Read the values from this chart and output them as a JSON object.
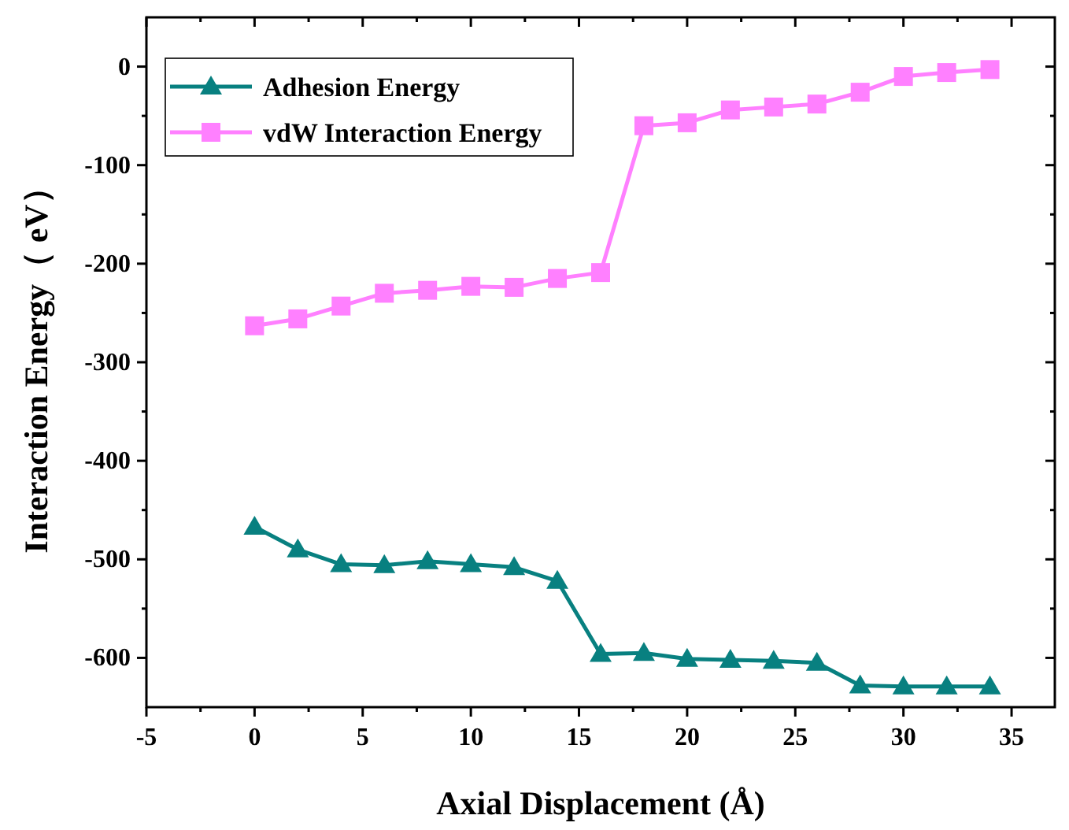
{
  "chart_data": {
    "type": "line",
    "xlabel": "Axial Displacement (Å)",
    "ylabel": "Interaction Energy（ eV）",
    "x": [
      0,
      2,
      4,
      6,
      8,
      10,
      12,
      14,
      16,
      18,
      20,
      22,
      24,
      26,
      28,
      30,
      32,
      34
    ],
    "series": [
      {
        "name": "Adhesion Energy",
        "color": "#088080",
        "marker": "triangle",
        "values": [
          -467,
          -490,
          -505,
          -506,
          -502,
          -505,
          -508,
          -522,
          -596,
          -595,
          -601,
          -602,
          -603,
          -605,
          -628,
          -629,
          -629,
          -629
        ]
      },
      {
        "name": "vdW Interaction Energy",
        "color": "#ff80ff",
        "marker": "square",
        "values": [
          -263,
          -256,
          -243,
          -230,
          -227,
          -223,
          -224,
          -215,
          -209,
          -60,
          -57,
          -44,
          -41,
          -38,
          -26,
          -10,
          -6,
          -3
        ]
      }
    ],
    "xlim": [
      -5,
      37
    ],
    "xticks": [
      -5,
      0,
      5,
      10,
      15,
      20,
      25,
      30,
      35
    ],
    "ylim": [
      -650,
      50
    ],
    "yticks": [
      -600,
      -500,
      -400,
      -300,
      -200,
      -100,
      0
    ],
    "legend": "top left",
    "grid": false,
    "line_style": "solid"
  }
}
